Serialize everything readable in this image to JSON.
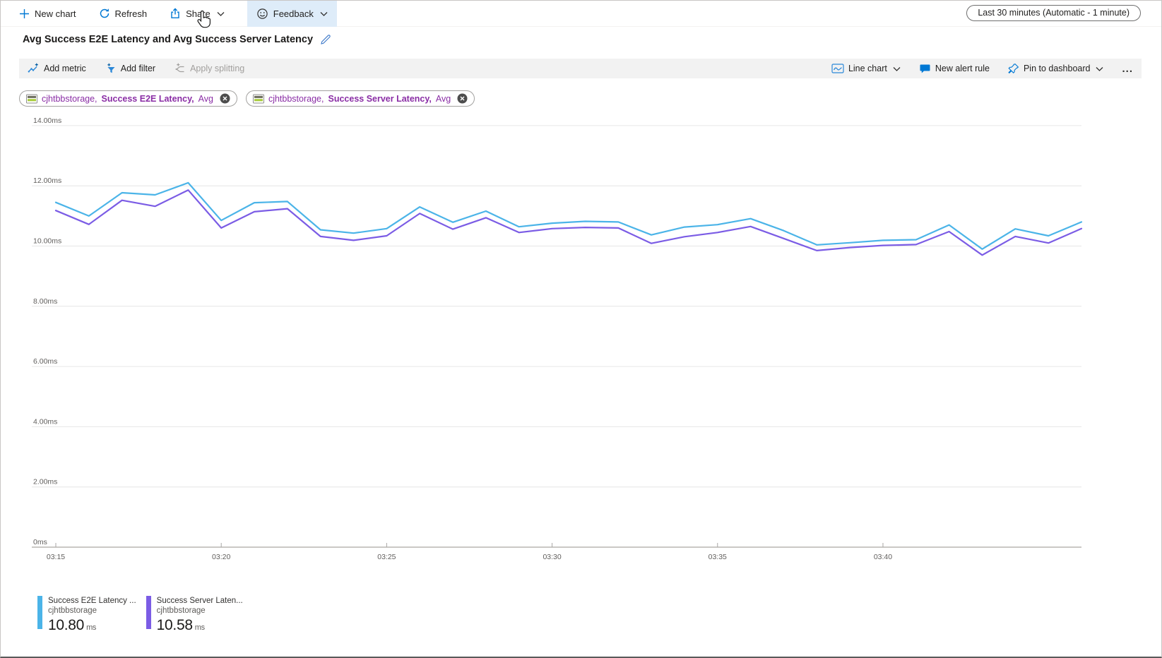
{
  "toolbar": {
    "new_chart": "New chart",
    "refresh": "Refresh",
    "share": "Share",
    "feedback": "Feedback",
    "time_range": "Last 30 minutes (Automatic - 1 minute)"
  },
  "title": "Avg Success E2E Latency and Avg Success Server Latency",
  "chart_toolbar": {
    "add_metric": "Add metric",
    "add_filter": "Add filter",
    "apply_splitting": "Apply splitting",
    "chart_type": "Line chart",
    "new_alert_rule": "New alert rule",
    "pin_to_dashboard": "Pin to dashboard",
    "more": "..."
  },
  "metric_pills": [
    {
      "resource": "cjhtbbstorage,",
      "metric": "Success E2E Latency,",
      "agg": "Avg"
    },
    {
      "resource": "cjhtbbstorage,",
      "metric": "Success Server Latency,",
      "agg": "Avg"
    }
  ],
  "legend": [
    {
      "label": "Success E2E Latency ...",
      "resource": "cjhtbbstorage",
      "value": "10.80",
      "unit": "ms",
      "color": "#4bb4e8"
    },
    {
      "label": "Success Server Laten...",
      "resource": "cjhtbbstorage",
      "value": "10.58",
      "unit": "ms",
      "color": "#7b5ce5"
    }
  ],
  "colors": {
    "accent": "#0078d4",
    "toolbar_hover": "#deecf9",
    "gridline": "#e6e6e6",
    "axis_line": "#b8b5b2",
    "axis_text": "#605e5c",
    "pill_text": "#8a2da5"
  },
  "chart_data": {
    "type": "line",
    "title": "Avg Success E2E Latency and Avg Success Server Latency",
    "unit": "ms",
    "ylim": [
      0,
      14
    ],
    "grid": "horizontal",
    "legend_position": "bottom-left",
    "x_start": "03:15",
    "point_interval_minutes": 1,
    "y_ticks": [
      {
        "label": "14.00ms",
        "value": 14
      },
      {
        "label": "12.00ms",
        "value": 12
      },
      {
        "label": "10.00ms",
        "value": 10
      },
      {
        "label": "8.00ms",
        "value": 8
      },
      {
        "label": "6.00ms",
        "value": 6
      },
      {
        "label": "4.00ms",
        "value": 4
      },
      {
        "label": "2.00ms",
        "value": 2
      },
      {
        "label": "0ms",
        "value": 0
      }
    ],
    "x_tick_labels": [
      "03:15",
      "03:20",
      "03:25",
      "03:30",
      "03:35",
      "03:40"
    ],
    "x_tick_minutes": [
      0,
      5,
      10,
      15,
      20,
      25
    ],
    "series": [
      {
        "name": "Success E2E Latency (Avg), cjhtbbstorage",
        "color": "#4bb4e8",
        "values": [
          11.45,
          11.0,
          11.77,
          11.7,
          12.1,
          10.85,
          11.44,
          11.48,
          10.54,
          10.43,
          10.58,
          11.3,
          10.79,
          11.16,
          10.64,
          10.76,
          10.82,
          10.8,
          10.37,
          10.63,
          10.71,
          10.91,
          10.51,
          10.04,
          10.11,
          10.19,
          10.21,
          10.7,
          9.9,
          10.57,
          10.34,
          10.8
        ]
      },
      {
        "name": "Success Server Latency (Avg), cjhtbbstorage",
        "color": "#7b5ce5",
        "values": [
          11.18,
          10.72,
          11.52,
          11.32,
          11.86,
          10.6,
          11.14,
          11.24,
          10.32,
          10.19,
          10.34,
          11.08,
          10.56,
          10.94,
          10.45,
          10.58,
          10.62,
          10.6,
          10.09,
          10.31,
          10.45,
          10.65,
          10.25,
          9.85,
          9.95,
          10.02,
          10.05,
          10.48,
          9.7,
          10.32,
          10.1,
          10.58
        ]
      }
    ]
  }
}
